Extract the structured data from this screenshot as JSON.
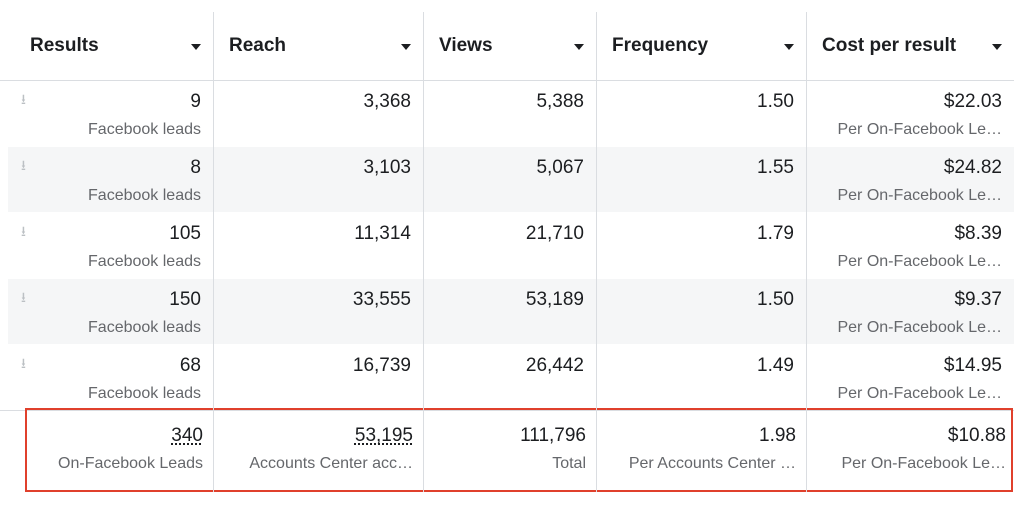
{
  "table": {
    "columns": [
      "Results",
      "Reach",
      "Views",
      "Frequency",
      "Cost per result"
    ],
    "rows": [
      [
        {
          "value": "9",
          "label": "Facebook leads"
        },
        {
          "value": "3,368"
        },
        {
          "value": "5,388"
        },
        {
          "value": "1.50"
        },
        {
          "value": "$22.03",
          "label": "Per On-Facebook Le…"
        }
      ],
      [
        {
          "value": "8",
          "label": "Facebook leads"
        },
        {
          "value": "3,103"
        },
        {
          "value": "5,067"
        },
        {
          "value": "1.55"
        },
        {
          "value": "$24.82",
          "label": "Per On-Facebook Le…"
        }
      ],
      [
        {
          "value": "105",
          "label": "Facebook leads"
        },
        {
          "value": "11,314"
        },
        {
          "value": "21,710"
        },
        {
          "value": "1.79"
        },
        {
          "value": "$8.39",
          "label": "Per On-Facebook Le…"
        }
      ],
      [
        {
          "value": "150",
          "label": "Facebook leads"
        },
        {
          "value": "33,555"
        },
        {
          "value": "53,189"
        },
        {
          "value": "1.50"
        },
        {
          "value": "$9.37",
          "label": "Per On-Facebook Le…"
        }
      ],
      [
        {
          "value": "68",
          "label": "Facebook leads"
        },
        {
          "value": "16,739"
        },
        {
          "value": "26,442"
        },
        {
          "value": "1.49"
        },
        {
          "value": "$14.95",
          "label": "Per On-Facebook Le…"
        }
      ]
    ],
    "totals": [
      {
        "value": "340",
        "label": "On-Facebook Leads"
      },
      {
        "value": "53,195",
        "label": "Accounts Center acc…"
      },
      {
        "value": "111,796",
        "label": "Total"
      },
      {
        "value": "1.98",
        "label": "Per Accounts Center …"
      },
      {
        "value": "$10.88",
        "label": "Per On-Facebook Le…"
      }
    ]
  }
}
